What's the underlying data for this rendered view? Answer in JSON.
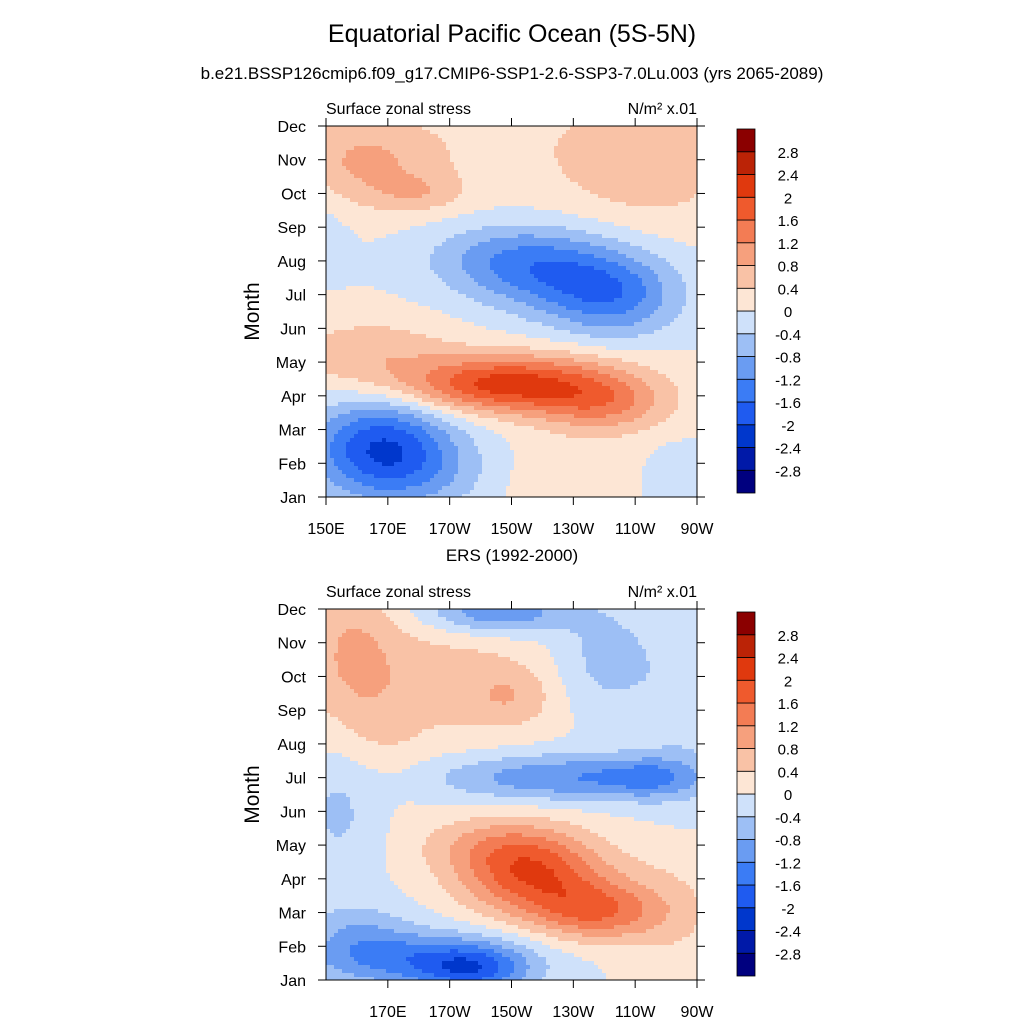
{
  "title": "Equatorial Pacific Ocean (5S-5N)",
  "subtitle": "b.e21.BSSP126cmip6.f09_g17.CMIP6-SSP1-2.6-SSP3-7.0Lu.003 (yrs 2065-2089)",
  "second_panel_title": "ERS (1992-2000)",
  "colors": {
    "levels": [
      "#00007f",
      "#0019a8",
      "#0037cc",
      "#1f5bf0",
      "#3b7cf5",
      "#6a9cf2",
      "#9dbff5",
      "#cfe1fa",
      "#fde6d5",
      "#f9c2a6",
      "#f6a07d",
      "#f37c54",
      "#ef5a2d",
      "#e0390e",
      "#bb2306",
      "#8b0000"
    ]
  },
  "chart_data": [
    {
      "type": "heatmap",
      "panel_label_left": "Surface zonal stress",
      "panel_label_right": "N/m² x.01",
      "ylabel": "Month",
      "xticks": [
        "150E",
        "170E",
        "170W",
        "150W",
        "130W",
        "110W",
        "90W"
      ],
      "xtick_values": [
        150,
        170,
        190,
        210,
        230,
        250,
        270
      ],
      "yticks": [
        "Jan",
        "Feb",
        "Mar",
        "Apr",
        "May",
        "Jun",
        "Jul",
        "Aug",
        "Sep",
        "Oct",
        "Nov",
        "Dec"
      ],
      "xlim": [
        150,
        270
      ],
      "ylim": [
        1,
        12
      ],
      "colorbar_labels": [
        "-2.8",
        "-2.4",
        "-2",
        "-1.6",
        "-1.2",
        "-0.8",
        "-0.4",
        "0",
        "0.4",
        "0.8",
        "1.2",
        "1.6",
        "2",
        "2.4",
        "2.8"
      ],
      "features": [
        {
          "lon": 150,
          "month": 1,
          "sx": 0,
          "sy": 0,
          "amp": 0
        },
        {
          "lon": 168,
          "month": 2.5,
          "sx": 16,
          "sy": 1.0,
          "amp": -1.9
        },
        {
          "lon": 185,
          "month": 1.6,
          "sx": 20,
          "sy": 0.8,
          "amp": -0.6
        },
        {
          "lon": 200,
          "month": 4.3,
          "sx": 20,
          "sy": 0.55,
          "amp": 1.3
        },
        {
          "lon": 222,
          "month": 4.4,
          "sx": 22,
          "sy": 0.65,
          "amp": 1.2
        },
        {
          "lon": 240,
          "month": 3.7,
          "sx": 15,
          "sy": 0.6,
          "amp": 1.0
        },
        {
          "lon": 165,
          "month": 5.2,
          "sx": 20,
          "sy": 0.8,
          "amp": 0.7
        },
        {
          "lon": 222,
          "month": 7.7,
          "sx": 20,
          "sy": 0.85,
          "amp": -1.2
        },
        {
          "lon": 243,
          "month": 6.9,
          "sx": 15,
          "sy": 0.85,
          "amp": -1.2
        },
        {
          "lon": 205,
          "month": 8.2,
          "sx": 18,
          "sy": 0.7,
          "amp": -0.5
        },
        {
          "lon": 162,
          "month": 10.9,
          "sx": 16,
          "sy": 0.9,
          "amp": 0.75
        },
        {
          "lon": 180,
          "month": 10.0,
          "sx": 10,
          "sy": 0.4,
          "amp": 0.5
        },
        {
          "lon": 255,
          "month": 11.0,
          "sx": 20,
          "sy": 1.4,
          "amp": 0.65
        },
        {
          "lon": 150,
          "month": 9.0,
          "sx": 6,
          "sy": 1.0,
          "amp": -0.2
        },
        {
          "lon": 200,
          "month": 11.5,
          "sx": 40,
          "sy": 1.5,
          "amp": 0.25
        },
        {
          "lon": 262,
          "month": 1.5,
          "sx": 8,
          "sy": 0.8,
          "amp": -0.3
        },
        {
          "lon": 220,
          "month": 1.5,
          "sx": 25,
          "sy": 0.9,
          "amp": 0.35
        }
      ]
    },
    {
      "type": "heatmap",
      "panel_label_left": "Surface zonal stress",
      "panel_label_right": "N/m² x.01",
      "ylabel": "Month",
      "xticks": [
        "170E",
        "170W",
        "150W",
        "130W",
        "110W",
        "90W"
      ],
      "xtick_values": [
        170,
        190,
        210,
        230,
        250,
        270
      ],
      "yticks": [
        "Jan",
        "Feb",
        "Mar",
        "Apr",
        "May",
        "Jun",
        "Jul",
        "Aug",
        "Sep",
        "Oct",
        "Nov",
        "Dec"
      ],
      "xlim": [
        150,
        270
      ],
      "ylim": [
        1,
        12
      ],
      "colorbar_labels": [
        "-2.8",
        "-2.4",
        "-2",
        "-1.6",
        "-1.2",
        "-0.8",
        "-0.4",
        "0",
        "0.4",
        "0.8",
        "1.2",
        "1.6",
        "2",
        "2.4",
        "2.8"
      ],
      "features": [
        {
          "lon": 150,
          "month": 1,
          "sx": 0,
          "sy": 0,
          "amp": 0
        },
        {
          "lon": 180,
          "month": 1.6,
          "sx": 24,
          "sy": 0.6,
          "amp": -1.3
        },
        {
          "lon": 198,
          "month": 1.3,
          "sx": 12,
          "sy": 0.5,
          "amp": -1.2
        },
        {
          "lon": 160,
          "month": 2.4,
          "sx": 12,
          "sy": 0.7,
          "amp": -0.6
        },
        {
          "lon": 215,
          "month": 4.3,
          "sx": 16,
          "sy": 0.9,
          "amp": 1.5
        },
        {
          "lon": 238,
          "month": 3.0,
          "sx": 14,
          "sy": 0.6,
          "amp": 1.3
        },
        {
          "lon": 225,
          "month": 3.8,
          "sx": 18,
          "sy": 0.8,
          "amp": 0.6
        },
        {
          "lon": 200,
          "month": 5.0,
          "sx": 16,
          "sy": 0.6,
          "amp": 0.5
        },
        {
          "lon": 228,
          "month": 7.0,
          "sx": 30,
          "sy": 0.5,
          "amp": -1.2
        },
        {
          "lon": 255,
          "month": 7.0,
          "sx": 10,
          "sy": 0.4,
          "amp": -0.6
        },
        {
          "lon": 205,
          "month": 11.9,
          "sx": 16,
          "sy": 0.45,
          "amp": -1.3
        },
        {
          "lon": 240,
          "month": 10.5,
          "sx": 12,
          "sy": 1.2,
          "amp": -0.6
        },
        {
          "lon": 185,
          "month": 10.0,
          "sx": 28,
          "sy": 1.5,
          "amp": 0.55
        },
        {
          "lon": 158,
          "month": 11.0,
          "sx": 10,
          "sy": 1.5,
          "amp": 0.6
        },
        {
          "lon": 210,
          "month": 9.4,
          "sx": 10,
          "sy": 0.6,
          "amp": 0.5
        },
        {
          "lon": 168,
          "month": 8.0,
          "sx": 10,
          "sy": 1.5,
          "amp": 0.25
        },
        {
          "lon": 155,
          "month": 6.0,
          "sx": 10,
          "sy": 1.3,
          "amp": -0.5
        },
        {
          "lon": 262,
          "month": 3.0,
          "sx": 12,
          "sy": 1.3,
          "amp": 0.4
        },
        {
          "lon": 265,
          "month": 9.0,
          "sx": 10,
          "sy": 2.0,
          "amp": -0.3
        }
      ]
    }
  ]
}
